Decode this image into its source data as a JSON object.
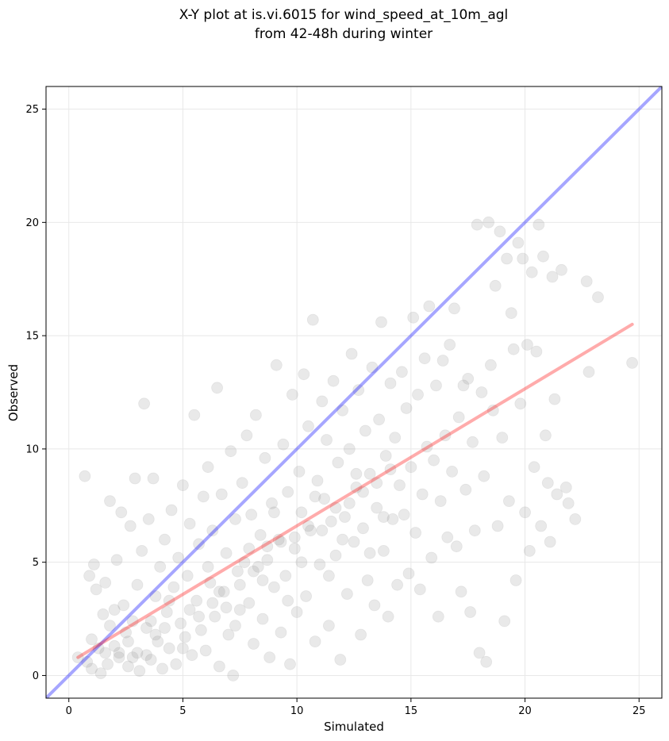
{
  "chart_data": {
    "type": "scatter",
    "title": [
      "X-Y plot at is.vi.6015 for wind_speed_at_10m_agl",
      "from 42-48h during winter"
    ],
    "xlabel": "Simulated",
    "ylabel": "Observed",
    "xlim": [
      -1,
      26
    ],
    "ylim": [
      -1,
      26
    ],
    "xticks": [
      0,
      5,
      10,
      15,
      20,
      25
    ],
    "yticks": [
      0,
      5,
      10,
      15,
      20,
      25
    ],
    "grid": true,
    "legend": "none",
    "point_color": "#555555",
    "reference_line": {
      "points": [
        [
          -1,
          -1
        ],
        [
          26,
          26
        ]
      ],
      "color": "#0000ff"
    },
    "regression_line": {
      "points": [
        [
          0.4,
          0.8
        ],
        [
          24.7,
          15.5
        ]
      ],
      "color": "#ff0000"
    },
    "series": [
      {
        "values": [
          [
            0.4,
            0.8
          ],
          [
            0.7,
            8.8
          ],
          [
            0.8,
            0.6
          ],
          [
            0.9,
            4.4
          ],
          [
            1.0,
            1.6
          ],
          [
            1.0,
            0.3
          ],
          [
            1.1,
            4.9
          ],
          [
            1.2,
            3.8
          ],
          [
            1.3,
            1.2
          ],
          [
            1.4,
            0.1
          ],
          [
            1.5,
            2.7
          ],
          [
            1.6,
            4.1
          ],
          [
            1.7,
            0.5
          ],
          [
            1.8,
            7.7
          ],
          [
            1.8,
            2.2
          ],
          [
            2.0,
            1.3
          ],
          [
            2.1,
            5.1
          ],
          [
            2.2,
            0.8
          ],
          [
            2.3,
            7.2
          ],
          [
            2.4,
            3.1
          ],
          [
            2.5,
            1.9
          ],
          [
            2.6,
            0.4
          ],
          [
            2.7,
            6.6
          ],
          [
            2.8,
            2.4
          ],
          [
            2.9,
            8.7
          ],
          [
            3.0,
            4.0
          ],
          [
            3.0,
            1.0
          ],
          [
            3.1,
            0.2
          ],
          [
            3.2,
            5.5
          ],
          [
            3.3,
            12.0
          ],
          [
            3.4,
            2.1
          ],
          [
            3.5,
            6.9
          ],
          [
            3.6,
            0.7
          ],
          [
            3.7,
            8.7
          ],
          [
            3.8,
            3.5
          ],
          [
            3.9,
            1.5
          ],
          [
            4.0,
            4.8
          ],
          [
            4.1,
            0.3
          ],
          [
            4.2,
            6.0
          ],
          [
            4.3,
            2.8
          ],
          [
            4.4,
            1.2
          ],
          [
            4.5,
            7.3
          ],
          [
            4.6,
            3.9
          ],
          [
            4.7,
            0.5
          ],
          [
            4.8,
            5.2
          ],
          [
            4.9,
            2.3
          ],
          [
            5.0,
            8.4
          ],
          [
            5.1,
            1.7
          ],
          [
            5.2,
            4.4
          ],
          [
            5.3,
            6.7
          ],
          [
            5.4,
            0.9
          ],
          [
            5.5,
            11.5
          ],
          [
            5.6,
            3.3
          ],
          [
            5.7,
            5.8
          ],
          [
            5.8,
            2.0
          ],
          [
            5.9,
            7.9
          ],
          [
            6.0,
            1.1
          ],
          [
            6.1,
            9.2
          ],
          [
            6.2,
            4.1
          ],
          [
            6.3,
            6.4
          ],
          [
            6.4,
            2.6
          ],
          [
            6.5,
            12.7
          ],
          [
            6.6,
            0.4
          ],
          [
            6.7,
            8.0
          ],
          [
            6.8,
            3.7
          ],
          [
            6.9,
            5.4
          ],
          [
            7.0,
            1.8
          ],
          [
            7.1,
            9.9
          ],
          [
            7.2,
            0.0
          ],
          [
            7.3,
            6.9
          ],
          [
            7.4,
            4.6
          ],
          [
            7.5,
            2.9
          ],
          [
            7.6,
            8.5
          ],
          [
            7.7,
            5.0
          ],
          [
            7.8,
            10.6
          ],
          [
            7.9,
            3.2
          ],
          [
            8.0,
            7.1
          ],
          [
            8.1,
            1.4
          ],
          [
            8.2,
            11.5
          ],
          [
            8.3,
            4.8
          ],
          [
            8.4,
            6.2
          ],
          [
            8.5,
            2.5
          ],
          [
            8.6,
            9.6
          ],
          [
            8.7,
            5.7
          ],
          [
            8.8,
            0.8
          ],
          [
            8.9,
            7.6
          ],
          [
            9.0,
            3.9
          ],
          [
            9.1,
            13.7
          ],
          [
            9.2,
            6.0
          ],
          [
            9.3,
            1.9
          ],
          [
            9.4,
            10.2
          ],
          [
            9.5,
            4.4
          ],
          [
            9.6,
            8.1
          ],
          [
            9.7,
            0.5
          ],
          [
            9.8,
            12.4
          ],
          [
            9.9,
            5.6
          ],
          [
            10.0,
            2.8
          ],
          [
            10.1,
            9.0
          ],
          [
            10.2,
            7.2
          ],
          [
            10.3,
            13.3
          ],
          [
            10.4,
            3.5
          ],
          [
            10.5,
            11.0
          ],
          [
            10.6,
            6.4
          ],
          [
            10.7,
            15.7
          ],
          [
            10.8,
            1.5
          ],
          [
            10.9,
            8.6
          ],
          [
            11.0,
            4.9
          ],
          [
            11.1,
            12.1
          ],
          [
            11.2,
            7.8
          ],
          [
            11.3,
            10.4
          ],
          [
            11.4,
            2.2
          ],
          [
            11.5,
            6.8
          ],
          [
            11.6,
            13.0
          ],
          [
            11.7,
            5.3
          ],
          [
            11.8,
            9.4
          ],
          [
            11.9,
            0.7
          ],
          [
            12.0,
            11.7
          ],
          [
            12.1,
            7.0
          ],
          [
            12.2,
            3.6
          ],
          [
            12.3,
            10.0
          ],
          [
            12.4,
            14.2
          ],
          [
            12.5,
            5.9
          ],
          [
            12.6,
            8.3
          ],
          [
            12.7,
            12.6
          ],
          [
            12.8,
            1.8
          ],
          [
            12.9,
            6.5
          ],
          [
            13.0,
            10.8
          ],
          [
            13.1,
            4.2
          ],
          [
            13.2,
            8.9
          ],
          [
            13.3,
            13.6
          ],
          [
            13.4,
            3.1
          ],
          [
            13.5,
            7.4
          ],
          [
            13.6,
            11.3
          ],
          [
            13.7,
            15.6
          ],
          [
            13.8,
            5.5
          ],
          [
            13.9,
            9.7
          ],
          [
            14.0,
            2.6
          ],
          [
            14.1,
            12.9
          ],
          [
            14.2,
            6.9
          ],
          [
            14.3,
            10.5
          ],
          [
            14.4,
            4.0
          ],
          [
            14.5,
            8.4
          ],
          [
            14.6,
            13.4
          ],
          [
            14.7,
            7.1
          ],
          [
            14.8,
            11.8
          ],
          [
            14.9,
            4.5
          ],
          [
            15.0,
            9.2
          ],
          [
            15.1,
            15.8
          ],
          [
            15.2,
            6.3
          ],
          [
            15.3,
            12.4
          ],
          [
            15.4,
            3.8
          ],
          [
            15.5,
            8.0
          ],
          [
            15.6,
            14.0
          ],
          [
            15.7,
            10.1
          ],
          [
            15.8,
            16.3
          ],
          [
            15.9,
            5.2
          ],
          [
            16.0,
            9.5
          ],
          [
            16.1,
            12.8
          ],
          [
            16.2,
            2.6
          ],
          [
            16.3,
            7.7
          ],
          [
            16.4,
            13.9
          ],
          [
            16.5,
            10.6
          ],
          [
            16.6,
            6.1
          ],
          [
            16.7,
            14.6
          ],
          [
            16.8,
            9.0
          ],
          [
            16.9,
            16.2
          ],
          [
            17.0,
            5.7
          ],
          [
            17.1,
            11.4
          ],
          [
            17.2,
            3.7
          ],
          [
            17.3,
            12.8
          ],
          [
            17.4,
            8.2
          ],
          [
            17.5,
            13.1
          ],
          [
            17.6,
            2.8
          ],
          [
            17.7,
            10.3
          ],
          [
            17.8,
            6.4
          ],
          [
            17.9,
            19.9
          ],
          [
            18.0,
            1.0
          ],
          [
            18.1,
            12.5
          ],
          [
            18.2,
            8.8
          ],
          [
            18.3,
            0.6
          ],
          [
            18.4,
            20.0
          ],
          [
            18.5,
            13.7
          ],
          [
            18.6,
            11.7
          ],
          [
            18.7,
            17.2
          ],
          [
            18.8,
            6.6
          ],
          [
            18.9,
            19.6
          ],
          [
            19.0,
            10.5
          ],
          [
            19.1,
            2.4
          ],
          [
            19.2,
            18.4
          ],
          [
            19.3,
            7.7
          ],
          [
            19.4,
            16.0
          ],
          [
            19.5,
            14.4
          ],
          [
            19.6,
            4.2
          ],
          [
            19.7,
            19.1
          ],
          [
            19.8,
            12.0
          ],
          [
            19.9,
            18.4
          ],
          [
            20.0,
            7.2
          ],
          [
            20.1,
            14.6
          ],
          [
            20.2,
            5.5
          ],
          [
            20.3,
            17.8
          ],
          [
            20.4,
            9.2
          ],
          [
            20.5,
            14.3
          ],
          [
            20.6,
            19.9
          ],
          [
            20.7,
            6.6
          ],
          [
            20.8,
            18.5
          ],
          [
            20.9,
            10.6
          ],
          [
            21.0,
            8.5
          ],
          [
            21.1,
            5.9
          ],
          [
            21.2,
            17.6
          ],
          [
            21.3,
            12.2
          ],
          [
            21.4,
            8.0
          ],
          [
            21.6,
            17.9
          ],
          [
            21.8,
            8.3
          ],
          [
            21.9,
            7.6
          ],
          [
            22.2,
            6.9
          ],
          [
            22.7,
            17.4
          ],
          [
            22.8,
            13.4
          ],
          [
            23.2,
            16.7
          ],
          [
            24.7,
            13.8
          ],
          [
            2.2,
            1.0
          ],
          [
            2.6,
            1.5
          ],
          [
            3.4,
            0.9
          ],
          [
            3.8,
            1.8
          ],
          [
            4.2,
            2.1
          ],
          [
            5.0,
            1.2
          ],
          [
            5.7,
            2.6
          ],
          [
            6.3,
            3.2
          ],
          [
            6.9,
            3.0
          ],
          [
            7.5,
            4.0
          ],
          [
            8.1,
            4.6
          ],
          [
            8.7,
            5.1
          ],
          [
            9.3,
            5.9
          ],
          [
            9.9,
            6.1
          ],
          [
            10.5,
            6.6
          ],
          [
            11.1,
            6.4
          ],
          [
            11.7,
            7.4
          ],
          [
            12.3,
            7.6
          ],
          [
            12.9,
            8.1
          ],
          [
            13.5,
            8.5
          ],
          [
            14.1,
            9.1
          ],
          [
            1.6,
            1.0
          ],
          [
            2.0,
            2.9
          ],
          [
            2.8,
            0.8
          ],
          [
            3.6,
            2.4
          ],
          [
            4.4,
            3.3
          ],
          [
            5.3,
            2.9
          ],
          [
            6.1,
            4.8
          ],
          [
            6.6,
            3.7
          ],
          [
            7.3,
            2.2
          ],
          [
            7.9,
            5.6
          ],
          [
            8.5,
            4.2
          ],
          [
            9.0,
            7.2
          ],
          [
            9.6,
            3.3
          ],
          [
            10.2,
            5.0
          ],
          [
            10.8,
            7.9
          ],
          [
            11.4,
            4.4
          ],
          [
            12.0,
            6.0
          ],
          [
            12.6,
            8.9
          ],
          [
            13.2,
            5.4
          ],
          [
            13.8,
            7.0
          ]
        ]
      }
    ]
  }
}
